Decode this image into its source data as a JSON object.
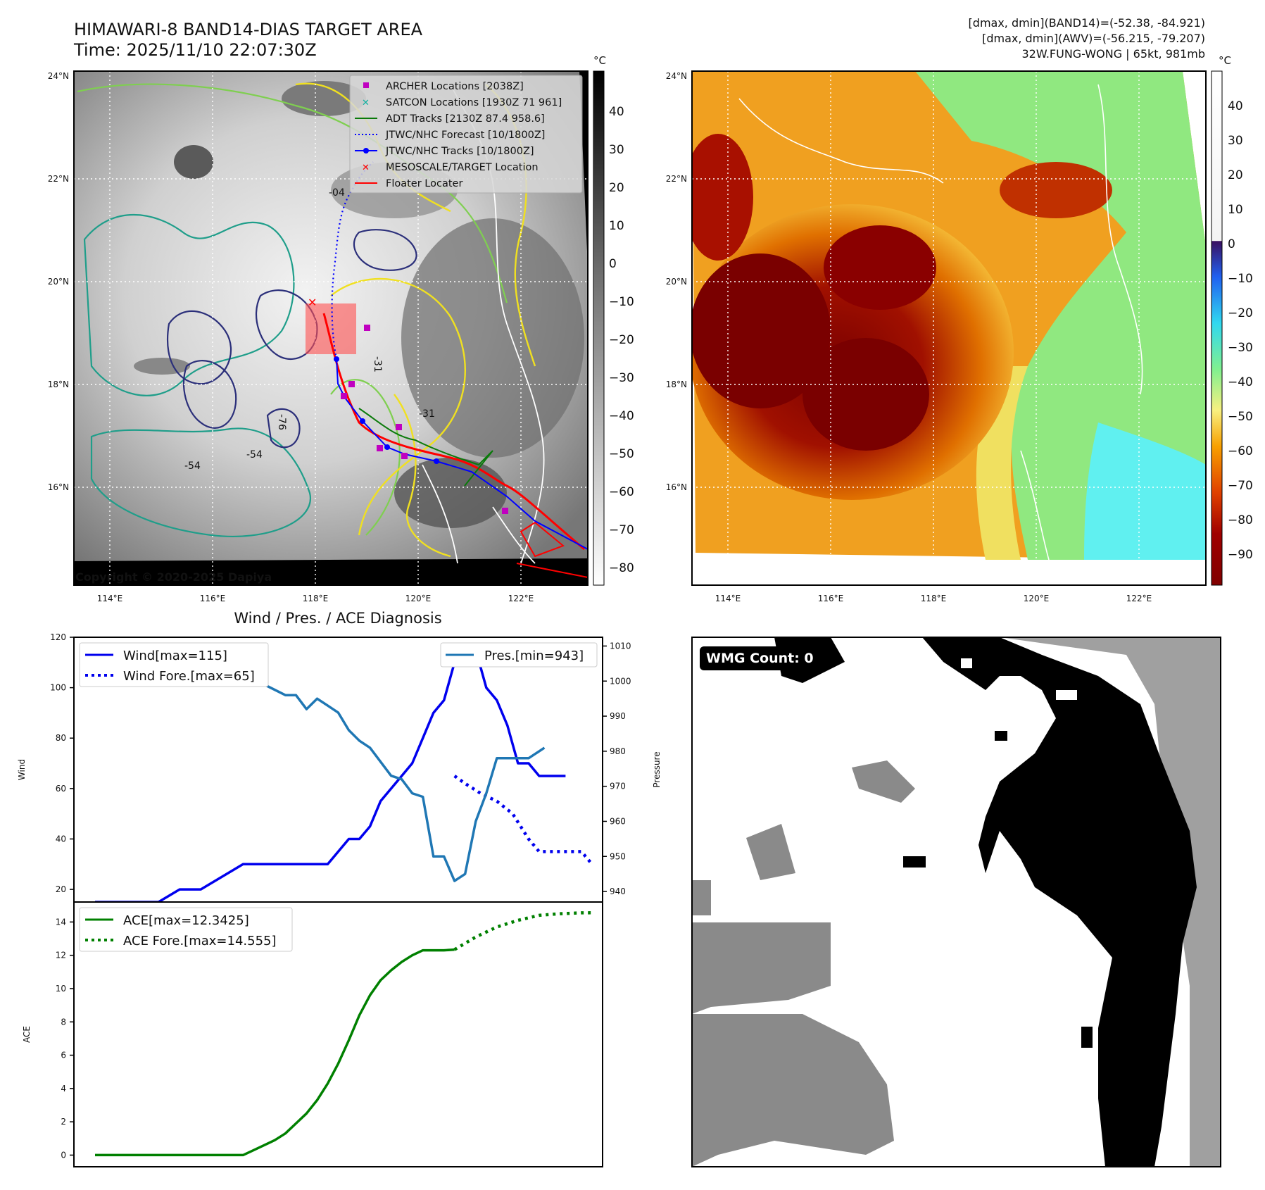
{
  "header": {
    "title_line1": "HIMAWARI-8 BAND14-DIAS TARGET AREA",
    "title_line2": "Time: 2025/11/10 22:07:30Z",
    "stats_line1": "[dmax, dmin](BAND14)=(-52.38, -84.921)",
    "stats_line2": "[dmax, dmin](AWV)=(-56.215, -79.207)",
    "stats_line3": "32W.FUNG-WONG | 65kt, 981mb"
  },
  "map_left": {
    "lon_ticks": [
      "114°E",
      "116°E",
      "118°E",
      "120°E",
      "122°E"
    ],
    "lat_ticks": [
      "24°N",
      "22°N",
      "20°N",
      "18°N",
      "16°N"
    ],
    "copyright": "Copyright © 2020-2025 Dapiya",
    "contour_labels": [
      "-31",
      "-31",
      "-54",
      "-54",
      "-76",
      "-04"
    ],
    "legend": [
      {
        "label": "ARCHER Locations [2038Z]",
        "color": "#c000c0",
        "marker": "square"
      },
      {
        "label": "SATCON Locations [1930Z 71 961]",
        "color": "#10b0a0",
        "marker": "x"
      },
      {
        "label": "ADT Tracks [2130Z 87.4 958.6]",
        "color": "#0a7a0a",
        "marker": "line"
      },
      {
        "label": "JTWC/NHC Forecast [10/1800Z]",
        "color": "#0000ff",
        "marker": "dotted"
      },
      {
        "label": "JTWC/NHC Tracks [10/1800Z]",
        "color": "#0000ff",
        "marker": "line-dot"
      },
      {
        "label": "MESOSCALE/TARGET Location",
        "color": "#ff0000",
        "marker": "x"
      },
      {
        "label": "Floater Locater",
        "color": "#ff0000",
        "marker": "line"
      }
    ],
    "colorbar": {
      "unit": "°C",
      "ticks": [
        "40",
        "30",
        "20",
        "10",
        "0",
        "−10",
        "−20",
        "−30",
        "−40",
        "−50",
        "−60",
        "−70",
        "−80"
      ]
    }
  },
  "map_right": {
    "lon_ticks": [
      "114°E",
      "116°E",
      "118°E",
      "120°E",
      "122°E"
    ],
    "lat_ticks": [
      "24°N",
      "22°N",
      "20°N",
      "18°N",
      "16°N"
    ],
    "colorbar": {
      "unit": "°C",
      "ticks": [
        "40",
        "30",
        "20",
        "10",
        "0",
        "−10",
        "−20",
        "−30",
        "−40",
        "−50",
        "−60",
        "−70",
        "−80",
        "−90"
      ]
    }
  },
  "wmg": {
    "label": "WMG Count: 0"
  },
  "chart_data": [
    {
      "type": "line",
      "title": "Wind / Pres. / ACE Diagnosis",
      "ylabel": "Wind",
      "ylim": [
        15,
        120
      ],
      "yticks": [
        20,
        40,
        60,
        80,
        100,
        120
      ],
      "y2label": "Pressure",
      "y2lim": [
        937,
        1012.5
      ],
      "y2ticks": [
        940,
        950,
        960,
        970,
        980,
        990,
        1000,
        1010
      ],
      "xlim": [
        0,
        100
      ],
      "series": [
        {
          "name": "Wind[max=115]",
          "axis": "left",
          "color": "#0000ee",
          "style": "solid",
          "x": [
            4,
            11,
            16,
            20,
            24,
            32,
            40,
            44,
            48,
            50,
            52,
            54,
            56,
            58,
            60,
            62,
            64,
            66,
            68,
            70,
            72,
            74,
            76,
            78,
            80,
            82,
            84,
            86,
            88,
            90,
            92,
            93
          ],
          "y": [
            15,
            15,
            15,
            20,
            20,
            30,
            30,
            30,
            30,
            35,
            40,
            40,
            45,
            55,
            60,
            65,
            70,
            80,
            90,
            95,
            110,
            110,
            115,
            100,
            95,
            85,
            70,
            70,
            65,
            65,
            65,
            65
          ]
        },
        {
          "name": "Wind Fore.[max=65]",
          "axis": "left",
          "color": "#0000ee",
          "style": "dotted",
          "x": [
            72,
            74,
            77,
            80,
            83,
            86,
            88,
            90,
            92,
            94,
            96,
            98
          ],
          "y": [
            65,
            62,
            58,
            55,
            50,
            40,
            35,
            35,
            35,
            35,
            35,
            30
          ]
        },
        {
          "name": "Pres.[min=943]",
          "axis": "right",
          "color": "#1f77b4",
          "style": "solid",
          "x": [
            4,
            6,
            10,
            14,
            16,
            20,
            24,
            28,
            32,
            36,
            40,
            42,
            44,
            46,
            48,
            50,
            52,
            54,
            56,
            58,
            60,
            62,
            64,
            66,
            68,
            70,
            72,
            74,
            76,
            78,
            80,
            82,
            84,
            86,
            88,
            89
          ],
          "y": [
            1010,
            1007,
            1007,
            1006,
            1005,
            1000,
            1001,
            1001,
            999,
            999,
            996,
            996,
            992,
            995,
            993,
            991,
            986,
            983,
            981,
            977,
            973,
            972,
            968,
            967,
            950,
            950,
            943,
            945,
            960,
            968,
            978,
            978,
            978,
            978,
            980,
            981
          ]
        }
      ]
    },
    {
      "type": "line",
      "ylabel": "ACE",
      "ylim": [
        -0.7,
        15.2
      ],
      "yticks": [
        0,
        2,
        4,
        6,
        8,
        10,
        12,
        14
      ],
      "xlim": [
        0,
        100
      ],
      "series": [
        {
          "name": "ACE[max=12.3425]",
          "color": "#008000",
          "style": "solid",
          "x": [
            4,
            10,
            16,
            20,
            24,
            28,
            32,
            34,
            36,
            38,
            40,
            42,
            44,
            46,
            48,
            50,
            52,
            54,
            56,
            58,
            60,
            62,
            64,
            66,
            68,
            70,
            72
          ],
          "y": [
            0,
            0,
            0,
            0,
            0,
            0,
            0,
            0.3,
            0.6,
            0.9,
            1.3,
            1.9,
            2.5,
            3.3,
            4.3,
            5.5,
            6.9,
            8.4,
            9.6,
            10.5,
            11.1,
            11.6,
            12.0,
            12.3,
            12.3,
            12.3,
            12.34
          ]
        },
        {
          "name": "ACE Fore.[max=14.555]",
          "color": "#008000",
          "style": "dotted",
          "x": [
            72,
            76,
            80,
            84,
            88,
            92,
            96,
            98
          ],
          "y": [
            12.34,
            13.1,
            13.7,
            14.1,
            14.4,
            14.5,
            14.55,
            14.555
          ]
        }
      ]
    }
  ]
}
